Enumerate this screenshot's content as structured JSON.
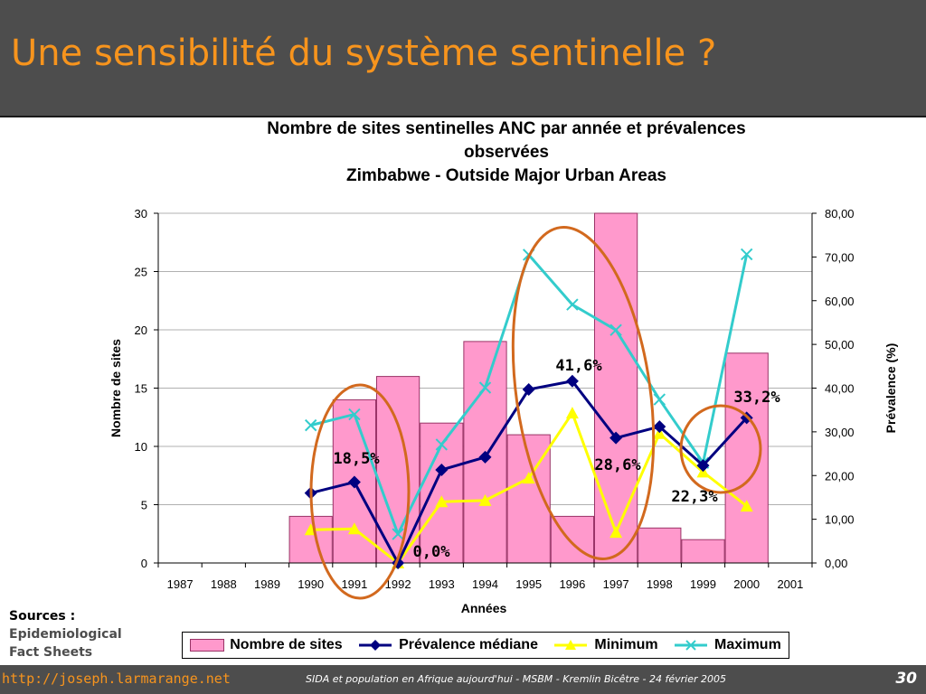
{
  "slide": {
    "title": "Une sensibilité du système sentinelle ?",
    "sources_label": "Sources :",
    "sources_text_1": "Epidemiological",
    "sources_text_2": "Fact Sheets",
    "footer_url": "http://joseph.larmarange.net",
    "footer_text": "SIDA et population en Afrique aujourd'hui - MSBM - Kremlin Bicêtre - 24 février 2005",
    "page_number": "30"
  },
  "chart_data": {
    "type": "bar+line",
    "title_line1": "Nombre de sites sentinelles ANC par année et prévalences",
    "title_line2": "observées",
    "title_line3": "Zimbabwe - Outside Major Urban Areas",
    "xlabel": "Années",
    "ylabel_left": "Nombre de sites",
    "ylabel_right": "Prévalence (%)",
    "ylim_left": [
      0,
      30
    ],
    "ylim_right": [
      0,
      80
    ],
    "yticks_left": [
      "0",
      "5",
      "10",
      "15",
      "20",
      "25",
      "30"
    ],
    "yticks_right": [
      "0,00",
      "10,00",
      "20,00",
      "30,00",
      "40,00",
      "50,00",
      "60,00",
      "70,00",
      "80,00"
    ],
    "categories": [
      "1987",
      "1988",
      "1989",
      "1990",
      "1991",
      "1992",
      "1993",
      "1994",
      "1995",
      "1996",
      "1997",
      "1998",
      "1999",
      "2000",
      "2001"
    ],
    "grid": true,
    "legend_position": "bottom",
    "bars": {
      "name": "Nombre de sites",
      "axis": "left",
      "color": "#ff99cc",
      "values": [
        null,
        null,
        null,
        4,
        14,
        16,
        12,
        19,
        11,
        4,
        30,
        3,
        2,
        18,
        null
      ]
    },
    "series": [
      {
        "name": "Prévalence médiane",
        "axis": "right",
        "color": "#000080",
        "marker": "diamond",
        "values": [
          null,
          null,
          null,
          16,
          18.5,
          0,
          21.3,
          24.2,
          39.7,
          41.6,
          28.6,
          31.2,
          22.3,
          33.2,
          null
        ]
      },
      {
        "name": "Minimum",
        "axis": "right",
        "color": "#ffff00",
        "marker": "triangle",
        "values": [
          null,
          null,
          null,
          7.6,
          7.8,
          0,
          14,
          14.3,
          19.4,
          34.3,
          7,
          29.6,
          20.8,
          13,
          null
        ]
      },
      {
        "name": "Maximum",
        "axis": "right",
        "color": "#33cccc",
        "marker": "x",
        "values": [
          null,
          null,
          null,
          31.5,
          34,
          6.6,
          27.1,
          40.1,
          70.5,
          59.1,
          53.3,
          37.4,
          22.9,
          70.6,
          null
        ]
      }
    ],
    "annotations": [
      {
        "text": "18,5%",
        "category": "1991"
      },
      {
        "text": "0,0%",
        "category": "1992"
      },
      {
        "text": "41,6%",
        "category": "1996"
      },
      {
        "text": "28,6%",
        "category": "1997"
      },
      {
        "text": "22,3%",
        "category": "1999"
      },
      {
        "text": "33,2%",
        "category": "2000"
      }
    ],
    "highlight_circles": [
      {
        "categories": [
          "1991",
          "1992"
        ]
      },
      {
        "categories": [
          "1995",
          "1997"
        ]
      },
      {
        "categories": [
          "1999",
          "2000"
        ]
      }
    ],
    "highlight_color": "#d2691e"
  }
}
